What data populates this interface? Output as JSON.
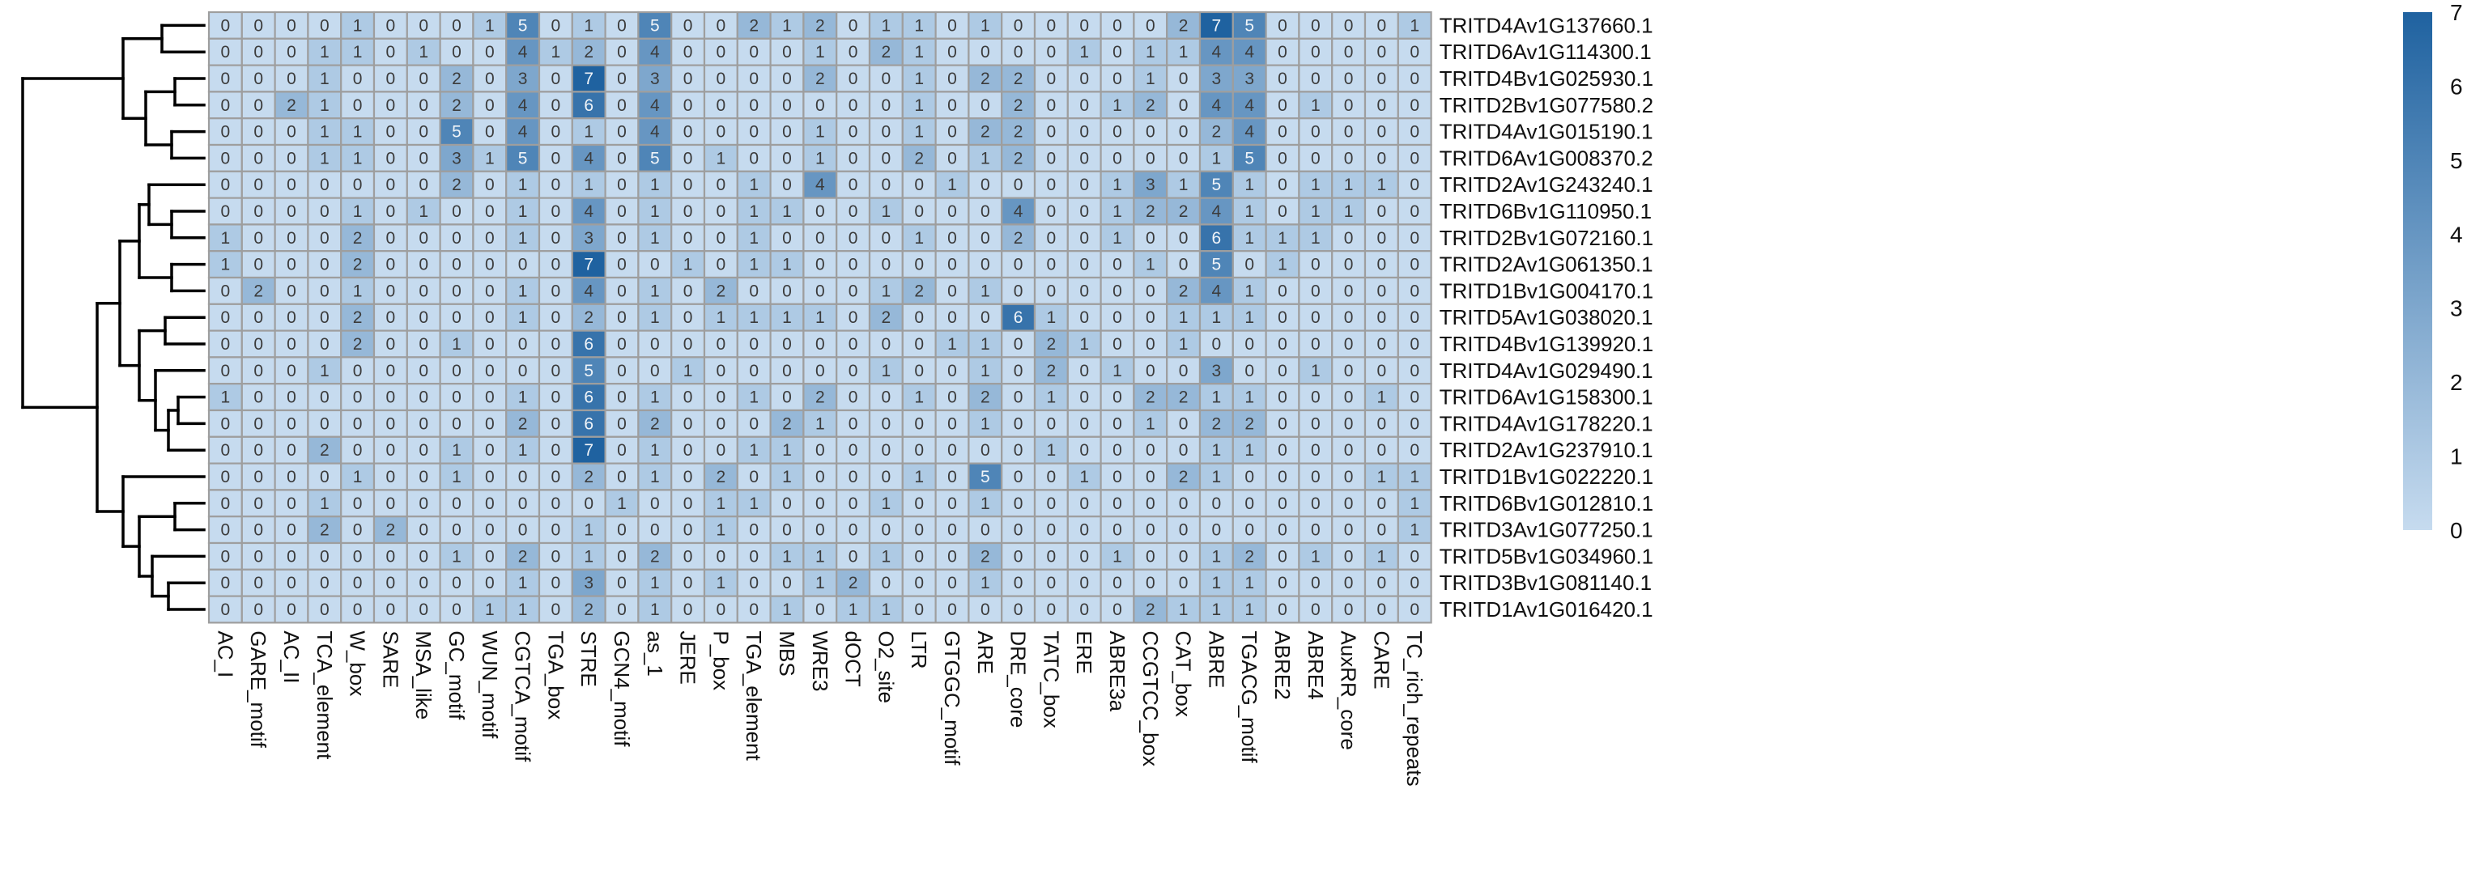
{
  "chart_data": {
    "type": "heatmap",
    "rows": [
      "TRITD4Av1G137660.1",
      "TRITD6Av1G114300.1",
      "TRITD4Bv1G025930.1",
      "TRITD2Bv1G077580.2",
      "TRITD4Av1G015190.1",
      "TRITD6Av1G008370.2",
      "TRITD2Av1G243240.1",
      "TRITD6Bv1G110950.1",
      "TRITD2Bv1G072160.1",
      "TRITD2Av1G061350.1",
      "TRITD1Bv1G004170.1",
      "TRITD5Av1G038020.1",
      "TRITD4Bv1G139920.1",
      "TRITD4Av1G029490.1",
      "TRITD6Av1G158300.1",
      "TRITD4Av1G178220.1",
      "TRITD2Av1G237910.1",
      "TRITD1Bv1G022220.1",
      "TRITD6Bv1G012810.1",
      "TRITD3Av1G077250.1",
      "TRITD5Bv1G034960.1",
      "TRITD3Bv1G081140.1",
      "TRITD1Av1G016420.1"
    ],
    "columns": [
      "AC_I",
      "GARE_motif",
      "AC_II",
      "TCA_element",
      "W_box",
      "SARE",
      "MSA_like",
      "GC_motif",
      "WUN_motif",
      "CGTCA_motif",
      "TGA_box",
      "STRE",
      "GCN4_motif",
      "as_1",
      "JERE",
      "P_box",
      "TGA_element",
      "MBS",
      "WRE3",
      "dOCT",
      "O2_site",
      "LTR",
      "GTGGC_motif",
      "ARE",
      "DRE_core",
      "TATC_box",
      "ERE",
      "ABRE3a",
      "CCGTCC_box",
      "CAT_box",
      "ABRE",
      "TGACG_motif",
      "ABRE2",
      "ABRE4",
      "AuxRR_core",
      "CARE",
      "TC_rich_repeats"
    ],
    "values": [
      [
        0,
        0,
        0,
        0,
        1,
        0,
        0,
        0,
        1,
        5,
        0,
        1,
        0,
        5,
        0,
        0,
        2,
        1,
        2,
        0,
        1,
        1,
        0,
        1,
        0,
        0,
        0,
        0,
        0,
        2,
        7,
        5,
        0,
        0,
        0,
        0,
        1
      ],
      [
        0,
        0,
        0,
        1,
        1,
        0,
        1,
        0,
        0,
        4,
        1,
        2,
        0,
        4,
        0,
        0,
        0,
        0,
        1,
        0,
        2,
        1,
        0,
        0,
        0,
        0,
        1,
        0,
        1,
        1,
        4,
        4,
        0,
        0,
        0,
        0,
        0
      ],
      [
        0,
        0,
        0,
        1,
        0,
        0,
        0,
        2,
        0,
        3,
        0,
        7,
        0,
        3,
        0,
        0,
        0,
        0,
        2,
        0,
        0,
        1,
        0,
        2,
        2,
        0,
        0,
        0,
        1,
        0,
        3,
        3,
        0,
        0,
        0,
        0,
        0
      ],
      [
        0,
        0,
        2,
        1,
        0,
        0,
        0,
        2,
        0,
        4,
        0,
        6,
        0,
        4,
        0,
        0,
        0,
        0,
        0,
        0,
        0,
        1,
        0,
        0,
        2,
        0,
        0,
        1,
        2,
        0,
        4,
        4,
        0,
        1,
        0,
        0,
        0
      ],
      [
        0,
        0,
        0,
        1,
        1,
        0,
        0,
        5,
        0,
        4,
        0,
        1,
        0,
        4,
        0,
        0,
        0,
        0,
        1,
        0,
        0,
        1,
        0,
        2,
        2,
        0,
        0,
        0,
        0,
        0,
        2,
        4,
        0,
        0,
        0,
        0,
        0
      ],
      [
        0,
        0,
        0,
        1,
        1,
        0,
        0,
        3,
        1,
        5,
        0,
        4,
        0,
        5,
        0,
        1,
        0,
        0,
        1,
        0,
        0,
        2,
        0,
        1,
        2,
        0,
        0,
        0,
        0,
        0,
        1,
        5,
        0,
        0,
        0,
        0,
        0
      ],
      [
        0,
        0,
        0,
        0,
        0,
        0,
        0,
        2,
        0,
        1,
        0,
        1,
        0,
        1,
        0,
        0,
        1,
        0,
        4,
        0,
        0,
        0,
        1,
        0,
        0,
        0,
        0,
        1,
        3,
        1,
        5,
        1,
        0,
        1,
        1,
        1,
        0
      ],
      [
        0,
        0,
        0,
        0,
        1,
        0,
        1,
        0,
        0,
        1,
        0,
        4,
        0,
        1,
        0,
        0,
        1,
        1,
        0,
        0,
        1,
        0,
        0,
        0,
        4,
        0,
        0,
        1,
        2,
        2,
        4,
        1,
        0,
        1,
        1,
        0,
        0
      ],
      [
        1,
        0,
        0,
        0,
        2,
        0,
        0,
        0,
        0,
        1,
        0,
        3,
        0,
        1,
        0,
        0,
        1,
        0,
        0,
        0,
        0,
        1,
        0,
        0,
        2,
        0,
        0,
        1,
        0,
        0,
        6,
        1,
        1,
        1,
        0,
        0,
        0
      ],
      [
        1,
        0,
        0,
        0,
        2,
        0,
        0,
        0,
        0,
        0,
        0,
        7,
        0,
        0,
        1,
        0,
        1,
        1,
        0,
        0,
        0,
        0,
        0,
        0,
        0,
        0,
        0,
        0,
        1,
        0,
        5,
        0,
        1,
        0,
        0,
        0,
        0
      ],
      [
        0,
        2,
        0,
        0,
        1,
        0,
        0,
        0,
        0,
        1,
        0,
        4,
        0,
        1,
        0,
        2,
        0,
        0,
        0,
        0,
        1,
        2,
        0,
        1,
        0,
        0,
        0,
        0,
        0,
        2,
        4,
        1,
        0,
        0,
        0,
        0,
        0
      ],
      [
        0,
        0,
        0,
        0,
        2,
        0,
        0,
        0,
        0,
        1,
        0,
        2,
        0,
        1,
        0,
        1,
        1,
        1,
        1,
        0,
        2,
        0,
        0,
        0,
        6,
        1,
        0,
        0,
        0,
        1,
        1,
        1,
        0,
        0,
        0,
        0,
        0
      ],
      [
        0,
        0,
        0,
        0,
        2,
        0,
        0,
        1,
        0,
        0,
        0,
        6,
        0,
        0,
        0,
        0,
        0,
        0,
        0,
        0,
        0,
        0,
        1,
        1,
        0,
        2,
        1,
        0,
        0,
        1,
        0,
        0,
        0,
        0,
        0,
        0,
        0
      ],
      [
        0,
        0,
        0,
        1,
        0,
        0,
        0,
        0,
        0,
        0,
        0,
        5,
        0,
        0,
        1,
        0,
        0,
        0,
        0,
        0,
        1,
        0,
        0,
        1,
        0,
        2,
        0,
        1,
        0,
        0,
        3,
        0,
        0,
        1,
        0,
        0,
        0
      ],
      [
        1,
        0,
        0,
        0,
        0,
        0,
        0,
        0,
        0,
        1,
        0,
        6,
        0,
        1,
        0,
        0,
        1,
        0,
        2,
        0,
        0,
        1,
        0,
        2,
        0,
        1,
        0,
        0,
        2,
        2,
        1,
        1,
        0,
        0,
        0,
        1,
        0
      ],
      [
        0,
        0,
        0,
        0,
        0,
        0,
        0,
        0,
        0,
        2,
        0,
        6,
        0,
        2,
        0,
        0,
        0,
        2,
        1,
        0,
        0,
        0,
        0,
        1,
        0,
        0,
        0,
        0,
        1,
        0,
        2,
        2,
        0,
        0,
        0,
        0,
        0
      ],
      [
        0,
        0,
        0,
        2,
        0,
        0,
        0,
        1,
        0,
        1,
        0,
        7,
        0,
        1,
        0,
        0,
        1,
        1,
        0,
        0,
        0,
        0,
        0,
        0,
        0,
        1,
        0,
        0,
        0,
        0,
        1,
        1,
        0,
        0,
        0,
        0,
        0
      ],
      [
        0,
        0,
        0,
        0,
        1,
        0,
        0,
        1,
        0,
        0,
        0,
        2,
        0,
        1,
        0,
        2,
        0,
        1,
        0,
        0,
        0,
        1,
        0,
        5,
        0,
        0,
        1,
        0,
        0,
        2,
        1,
        0,
        0,
        0,
        0,
        1,
        1
      ],
      [
        0,
        0,
        0,
        1,
        0,
        0,
        0,
        0,
        0,
        0,
        0,
        0,
        1,
        0,
        0,
        1,
        1,
        0,
        0,
        0,
        1,
        0,
        0,
        1,
        0,
        0,
        0,
        0,
        0,
        0,
        0,
        0,
        0,
        0,
        0,
        0,
        1
      ],
      [
        0,
        0,
        0,
        2,
        0,
        2,
        0,
        0,
        0,
        0,
        0,
        1,
        0,
        0,
        0,
        1,
        0,
        0,
        0,
        0,
        0,
        0,
        0,
        0,
        0,
        0,
        0,
        0,
        0,
        0,
        0,
        0,
        0,
        0,
        0,
        0,
        1
      ],
      [
        0,
        0,
        0,
        0,
        0,
        0,
        0,
        1,
        0,
        2,
        0,
        1,
        0,
        2,
        0,
        0,
        0,
        1,
        1,
        0,
        1,
        0,
        0,
        2,
        0,
        0,
        0,
        1,
        0,
        0,
        1,
        2,
        0,
        1,
        0,
        1,
        0
      ],
      [
        0,
        0,
        0,
        0,
        0,
        0,
        0,
        0,
        0,
        1,
        0,
        3,
        0,
        1,
        0,
        1,
        0,
        0,
        1,
        2,
        0,
        0,
        0,
        1,
        0,
        0,
        0,
        0,
        0,
        0,
        1,
        1,
        0,
        0,
        0,
        0,
        0
      ],
      [
        0,
        0,
        0,
        0,
        0,
        0,
        0,
        0,
        1,
        1,
        0,
        2,
        0,
        1,
        0,
        0,
        0,
        1,
        0,
        1,
        1,
        0,
        0,
        0,
        0,
        0,
        0,
        0,
        2,
        1,
        1,
        1,
        0,
        0,
        0,
        0,
        0
      ]
    ],
    "color_scale": {
      "min": 0,
      "max": 7,
      "low_color": "#c6dbef",
      "high_color": "#1f62a0"
    },
    "legend_ticks": [
      0,
      1,
      2,
      3,
      4,
      5,
      6,
      7
    ],
    "legend_position": "right",
    "row_dendrogram": true,
    "cell_border_color": "#9e9e9e"
  }
}
